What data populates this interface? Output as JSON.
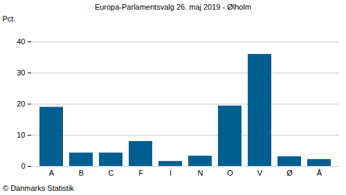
{
  "chart_data": {
    "type": "bar",
    "title": "Europa-Parlamentsvalg 26. maj 2019 - Ølholm",
    "y_label": "Pct.",
    "source": "© Danmarks Statistik",
    "categories": [
      "A",
      "B",
      "C",
      "F",
      "I",
      "N",
      "O",
      "V",
      "Ø",
      "Å"
    ],
    "values": [
      19,
      4.3,
      4.3,
      8,
      1.6,
      3.3,
      19.4,
      36,
      3.1,
      2.2
    ],
    "color": "#005f91",
    "ylim": [
      0,
      40
    ],
    "yticks": [
      0,
      10,
      20,
      30,
      40
    ],
    "grid": true
  }
}
